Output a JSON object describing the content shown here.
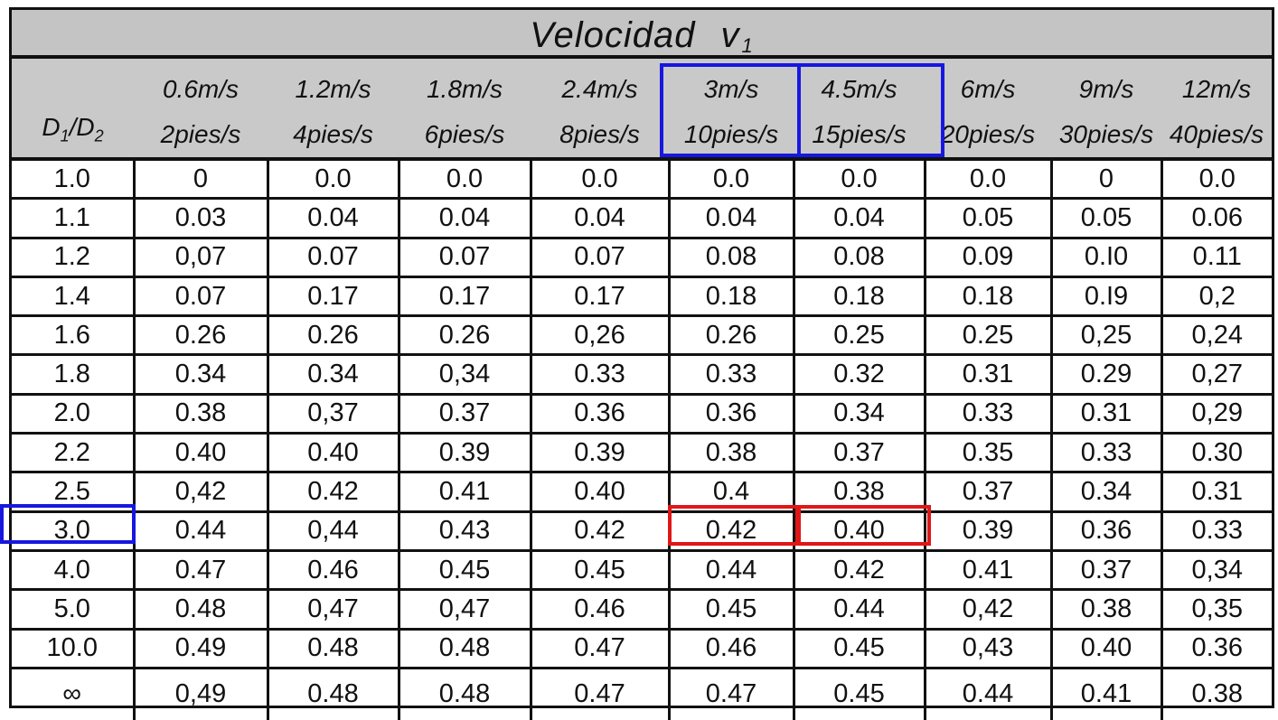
{
  "title": {
    "text": "Velocidad",
    "var": "v",
    "sub": "1"
  },
  "row_header": {
    "d1": "D",
    "s1": "1",
    "slash": "/",
    "d2": "D",
    "s2": "2"
  },
  "columns": [
    {
      "metric": "0.6m/s",
      "imperial": "2pies/s"
    },
    {
      "metric": "1.2m/s",
      "imperial": "4pies/s"
    },
    {
      "metric": "1.8m/s",
      "imperial": "6pies/s"
    },
    {
      "metric": "2.4m/s",
      "imperial": "8pies/s"
    },
    {
      "metric": "3m/s",
      "imperial": "10pies/s"
    },
    {
      "metric": "4.5m/s",
      "imperial": "15pies/s"
    },
    {
      "metric": "6m/s",
      "imperial": "20pies/s"
    },
    {
      "metric": "9m/s",
      "imperial": "30pies/s"
    },
    {
      "metric": "12m/s",
      "imperial": "40pies/s"
    }
  ],
  "rows": [
    {
      "ratio": "1.0",
      "values": [
        "0",
        "0.0",
        "0.0",
        "0.0",
        "0.0",
        "0.0",
        "0.0",
        "0",
        "0.0"
      ]
    },
    {
      "ratio": "1.1",
      "values": [
        "0.03",
        "0.04",
        "0.04",
        "0.04",
        "0.04",
        "0.04",
        "0.05",
        "0.05",
        "0.06"
      ]
    },
    {
      "ratio": "1.2",
      "values": [
        "0,07",
        "0.07",
        "0.07",
        "0.07",
        "0.08",
        "0.08",
        "0.09",
        "0.I0",
        "0.11"
      ]
    },
    {
      "ratio": "1.4",
      "values": [
        "0.07",
        "0.17",
        "0.17",
        "0.17",
        "0.18",
        "0.18",
        "0.18",
        "0.I9",
        "0,2"
      ]
    },
    {
      "ratio": "1.6",
      "values": [
        "0.26",
        "0.26",
        "0.26",
        "0,26",
        "0.26",
        "0.25",
        "0.25",
        "0,25",
        "0,24"
      ]
    },
    {
      "ratio": "1.8",
      "values": [
        "0.34",
        "0.34",
        "0,34",
        "0.33",
        "0.33",
        "0.32",
        "0.31",
        "0.29",
        "0,27"
      ]
    },
    {
      "ratio": "2.0",
      "values": [
        "0.38",
        "0,37",
        "0.37",
        "0.36",
        "0.36",
        "0.34",
        "0.33",
        "0.31",
        "0,29"
      ]
    },
    {
      "ratio": "2.2",
      "values": [
        "0.40",
        "0.40",
        "0.39",
        "0.39",
        "0.38",
        "0.37",
        "0.35",
        "0.33",
        "0.30"
      ]
    },
    {
      "ratio": "2.5",
      "values": [
        "0,42",
        "0.42",
        "0.41",
        "0.40",
        "0.4",
        "0.38",
        "0.37",
        "0.34",
        "0.31"
      ]
    },
    {
      "ratio": "3.0",
      "values": [
        "0.44",
        "0,44",
        "0.43",
        "0.42",
        "0.42",
        "0.40",
        "0.39",
        "0.36",
        "0.33"
      ]
    },
    {
      "ratio": "4.0",
      "values": [
        "0.47",
        "0.46",
        "0.45",
        "0.45",
        "0.44",
        "0.42",
        "0.41",
        "0.37",
        "0,34"
      ]
    },
    {
      "ratio": "5.0",
      "values": [
        "0.48",
        "0,47",
        "0,47",
        "0.46",
        "0.45",
        "0.44",
        "0,42",
        "0.38",
        "0,35"
      ]
    },
    {
      "ratio": "10.0",
      "values": [
        "0.49",
        "0.48",
        "0.48",
        "0.47",
        "0.46",
        "0.45",
        "0,43",
        "0.40",
        "0.36"
      ]
    },
    {
      "ratio": "∞",
      "values": [
        "0,49",
        "0.48",
        "0.48",
        "0.47",
        "0.47",
        "0.45",
        "0.44",
        "0.41",
        "0.38"
      ]
    }
  ],
  "highlights": {
    "blue": "#1717e0",
    "red": "#e01717"
  }
}
